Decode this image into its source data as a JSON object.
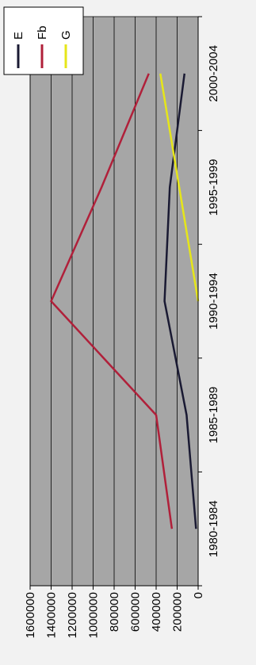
{
  "chart_data": {
    "type": "line",
    "categories": [
      "1980-1984",
      "1985-1989",
      "1990-1994",
      "1995-1999",
      "2000-2004"
    ],
    "ylim": [
      0,
      1600000
    ],
    "yticks": [
      0,
      200000,
      400000,
      600000,
      800000,
      1000000,
      1200000,
      1400000,
      1600000
    ],
    "ytick_labels": [
      "0",
      "200000",
      "400000",
      "600000",
      "800000",
      "1000000",
      "1200000",
      "1400000",
      "1600000"
    ],
    "grid": true,
    "legend": "top-right",
    "series": [
      {
        "name": "E",
        "color": "#1a1a33",
        "values": [
          20000,
          110000,
          320000,
          270000,
          130000
        ]
      },
      {
        "name": "Fb",
        "color": "#b0203a",
        "values": [
          250000,
          400000,
          1400000,
          920000,
          470000
        ]
      },
      {
        "name": "G",
        "color": "#e6e619",
        "values": [
          null,
          null,
          0,
          180000,
          360000
        ]
      }
    ],
    "plot_bg": "#a6a6a6",
    "grid_color": "#000000"
  }
}
